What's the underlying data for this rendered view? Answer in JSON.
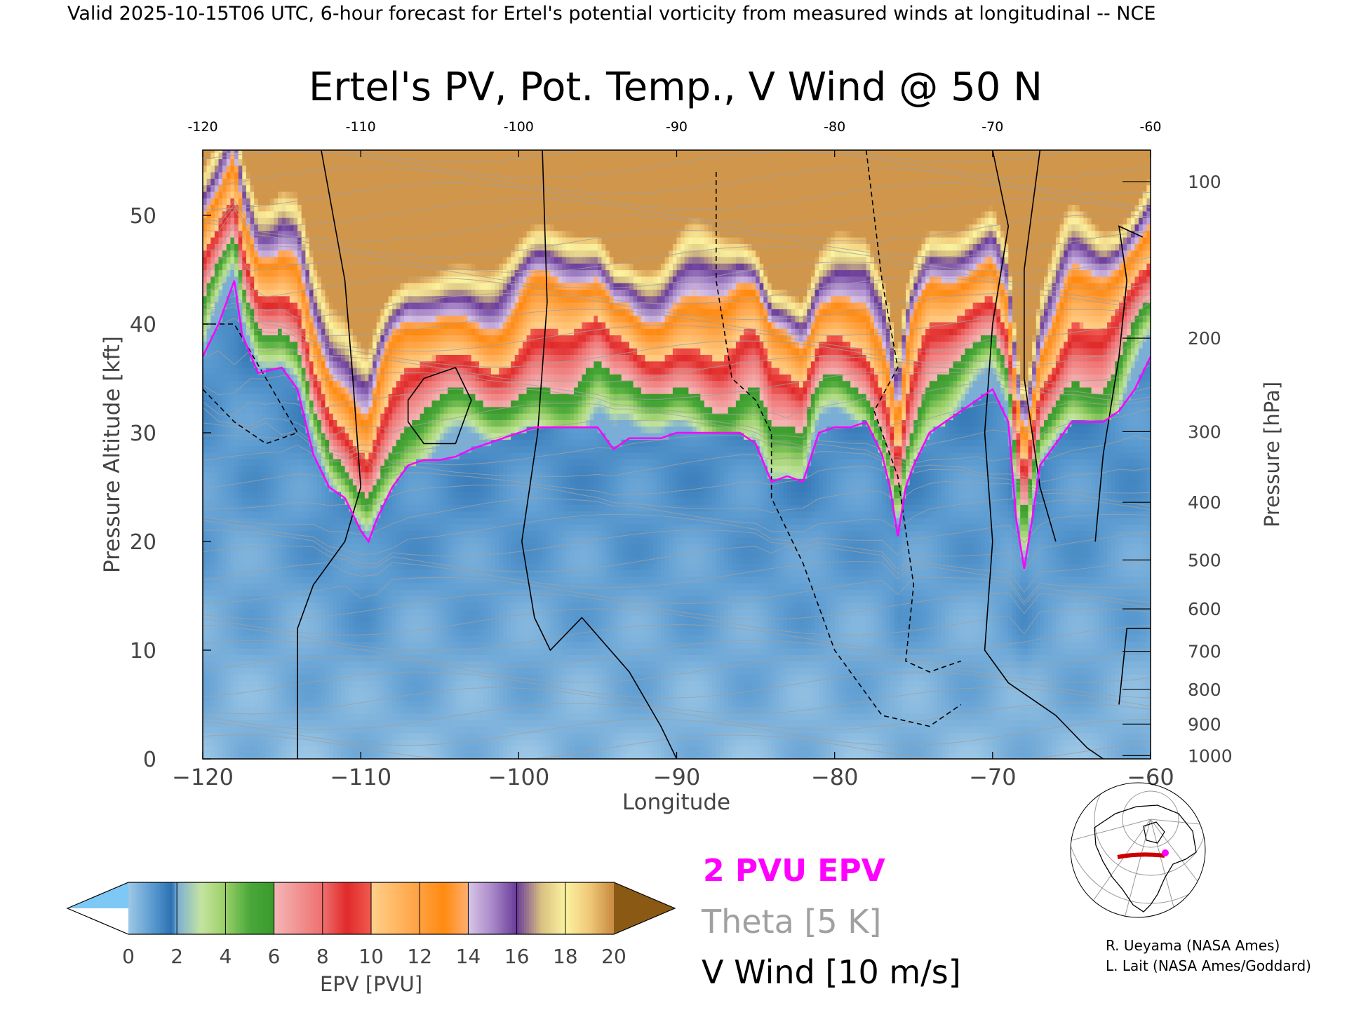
{
  "header": "Valid 2025-10-15T06 UTC, 6-hour forecast for Ertel's potential vorticity from measured winds at longitudinal -- NCE",
  "chart_data": {
    "type": "heatmap",
    "title": "Ertel's PV, Pot. Temp., V Wind @ 50 N",
    "xlabel": "Longitude",
    "ylabel": "Pressure Altitude [kft]",
    "y2label": "Pressure [hPa]",
    "xlim": [
      -120,
      -60
    ],
    "ylim": [
      0,
      56
    ],
    "x_ticks": [
      -120,
      -110,
      -100,
      -90,
      -80,
      -70,
      -60
    ],
    "x_tick_labels": [
      "−120",
      "−110",
      "−100",
      "−90",
      "−80",
      "−70",
      "−60"
    ],
    "top_tick_labels": [
      "-120",
      "-110",
      "-100",
      "-90",
      "-80",
      "-70",
      "-60"
    ],
    "y_ticks": [
      0,
      10,
      20,
      30,
      40,
      50
    ],
    "y_tick_labels": [
      "0",
      "10",
      "20",
      "30",
      "40",
      "50"
    ],
    "pressure_ticks": [
      {
        "hPa": 100,
        "kft": 53.1,
        "label": "100"
      },
      {
        "hPa": 200,
        "kft": 38.7,
        "label": "200"
      },
      {
        "hPa": 300,
        "kft": 30.1,
        "label": "300"
      },
      {
        "hPa": 400,
        "kft": 23.6,
        "label": "400"
      },
      {
        "hPa": 500,
        "kft": 18.3,
        "label": "500"
      },
      {
        "hPa": 600,
        "kft": 13.8,
        "label": "600"
      },
      {
        "hPa": 700,
        "kft": 9.9,
        "label": "700"
      },
      {
        "hPa": 800,
        "kft": 6.4,
        "label": "800"
      },
      {
        "hPa": 900,
        "kft": 3.2,
        "label": "900"
      },
      {
        "hPa": 1000,
        "kft": 0.3,
        "label": "1000"
      }
    ],
    "pv2_tropopause": {
      "x": [
        -120,
        -119,
        -118.5,
        -118,
        -117.5,
        -116.5,
        -115,
        -114,
        -113,
        -112,
        -111,
        -110,
        -109.5,
        -109,
        -108,
        -107,
        -106,
        -105,
        -104,
        -103,
        -102,
        -101,
        -100,
        -99,
        -98,
        -97,
        -96,
        -95,
        -94,
        -93,
        -92,
        -91,
        -90,
        -89,
        -88,
        -87,
        -86,
        -85,
        -84,
        -83,
        -82,
        -81,
        -80,
        -79,
        -78,
        -77,
        -76.5,
        -76,
        -75.5,
        -75,
        -74,
        -73,
        -72,
        -71,
        -70,
        -69,
        -68.5,
        -68,
        -67.5,
        -67,
        -66,
        -65,
        -64,
        -63,
        -62,
        -61,
        -60
      ],
      "y": [
        37,
        40,
        42,
        44,
        39,
        35.5,
        36,
        34,
        28,
        25,
        24,
        21,
        20,
        22,
        25,
        27,
        27.5,
        27.5,
        27.8,
        28.5,
        29,
        29.5,
        30,
        30.5,
        30.5,
        30.5,
        30.5,
        30.5,
        28.5,
        29.5,
        29.5,
        29.5,
        30,
        30,
        30,
        30,
        30,
        29,
        25.5,
        26,
        25.5,
        30,
        30.5,
        30.5,
        31,
        28,
        25,
        20.5,
        25,
        27,
        30,
        31,
        32,
        33,
        34,
        31,
        22,
        17.5,
        22,
        27,
        29,
        31,
        31,
        31,
        32,
        34,
        37
      ]
    },
    "colorbar": {
      "label": "EPV [PVU]",
      "ticks": [
        0,
        2,
        4,
        6,
        8,
        10,
        12,
        14,
        16,
        18,
        20
      ],
      "tick_labels": [
        "0",
        "2",
        "4",
        "6",
        "8",
        "10",
        "12",
        "14",
        "16",
        "18",
        "20"
      ],
      "under_color": "#7ec8f5",
      "over_color": "#8a5a14",
      "stops": [
        {
          "v": 0,
          "color": "#9ec8e6"
        },
        {
          "v": 1,
          "color": "#5a9ad0"
        },
        {
          "v": 1.8,
          "color": "#2a6fb0"
        },
        {
          "v": 2,
          "color": "#7aaed6"
        },
        {
          "v": 3,
          "color": "#c4e4a0"
        },
        {
          "v": 4,
          "color": "#9ad068"
        },
        {
          "v": 5,
          "color": "#4aa83a"
        },
        {
          "v": 6,
          "color": "#3a9a2c"
        },
        {
          "v": 6.01,
          "color": "#f4b6b6"
        },
        {
          "v": 8,
          "color": "#ef6f6f"
        },
        {
          "v": 9,
          "color": "#e02a2a"
        },
        {
          "v": 10,
          "color": "#f05a50"
        },
        {
          "v": 10.01,
          "color": "#ffd08a"
        },
        {
          "v": 12,
          "color": "#ffa040"
        },
        {
          "v": 13,
          "color": "#ff8a10"
        },
        {
          "v": 14,
          "color": "#ffb070"
        },
        {
          "v": 14.01,
          "color": "#d8c4e6"
        },
        {
          "v": 15,
          "color": "#a888c8"
        },
        {
          "v": 16,
          "color": "#6a3c9a"
        },
        {
          "v": 17,
          "color": "#d8c080"
        },
        {
          "v": 18,
          "color": "#fbf3a0"
        },
        {
          "v": 19,
          "color": "#f0c878"
        },
        {
          "v": 20,
          "color": "#c88a40"
        }
      ]
    },
    "colors": {
      "pv2": "#ff00ff",
      "theta": "#a0a0a0",
      "vwind": "#000000"
    }
  },
  "legend": {
    "pv2": "2 PVU EPV",
    "theta": "Theta [5 K]",
    "vwind": "V Wind [10 m/s]"
  },
  "credits": {
    "line1": "R. Ueyama (NASA Ames)",
    "line2": "L. Lait (NASA Ames/Goddard)"
  }
}
